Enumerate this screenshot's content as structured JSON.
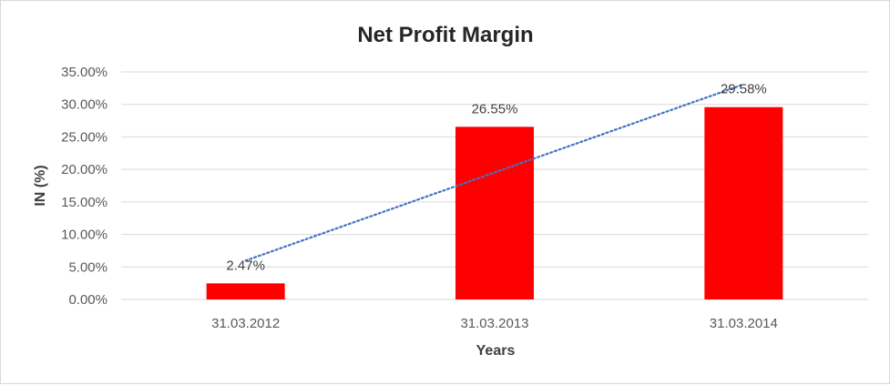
{
  "chart_data": {
    "type": "bar",
    "title": "Net Profit Margin",
    "xlabel": "Years",
    "ylabel": "IN (%)",
    "categories": [
      "31.03.2012",
      "31.03.2013",
      "31.03.2014"
    ],
    "values": [
      2.47,
      26.55,
      29.58
    ],
    "data_labels": [
      "2.47%",
      "26.55%",
      "29.58%"
    ],
    "ylim": [
      0,
      35
    ],
    "yticks": [
      0,
      5,
      10,
      15,
      20,
      25,
      30,
      35
    ],
    "ytick_labels": [
      "0.00%",
      "5.00%",
      "10.00%",
      "15.00%",
      "20.00%",
      "25.00%",
      "30.00%",
      "35.00%"
    ],
    "grid": true,
    "legend": "none",
    "trendline": {
      "type": "linear",
      "style": "dotted",
      "color": "#4472c4"
    },
    "bar_color": "#ff0000"
  }
}
